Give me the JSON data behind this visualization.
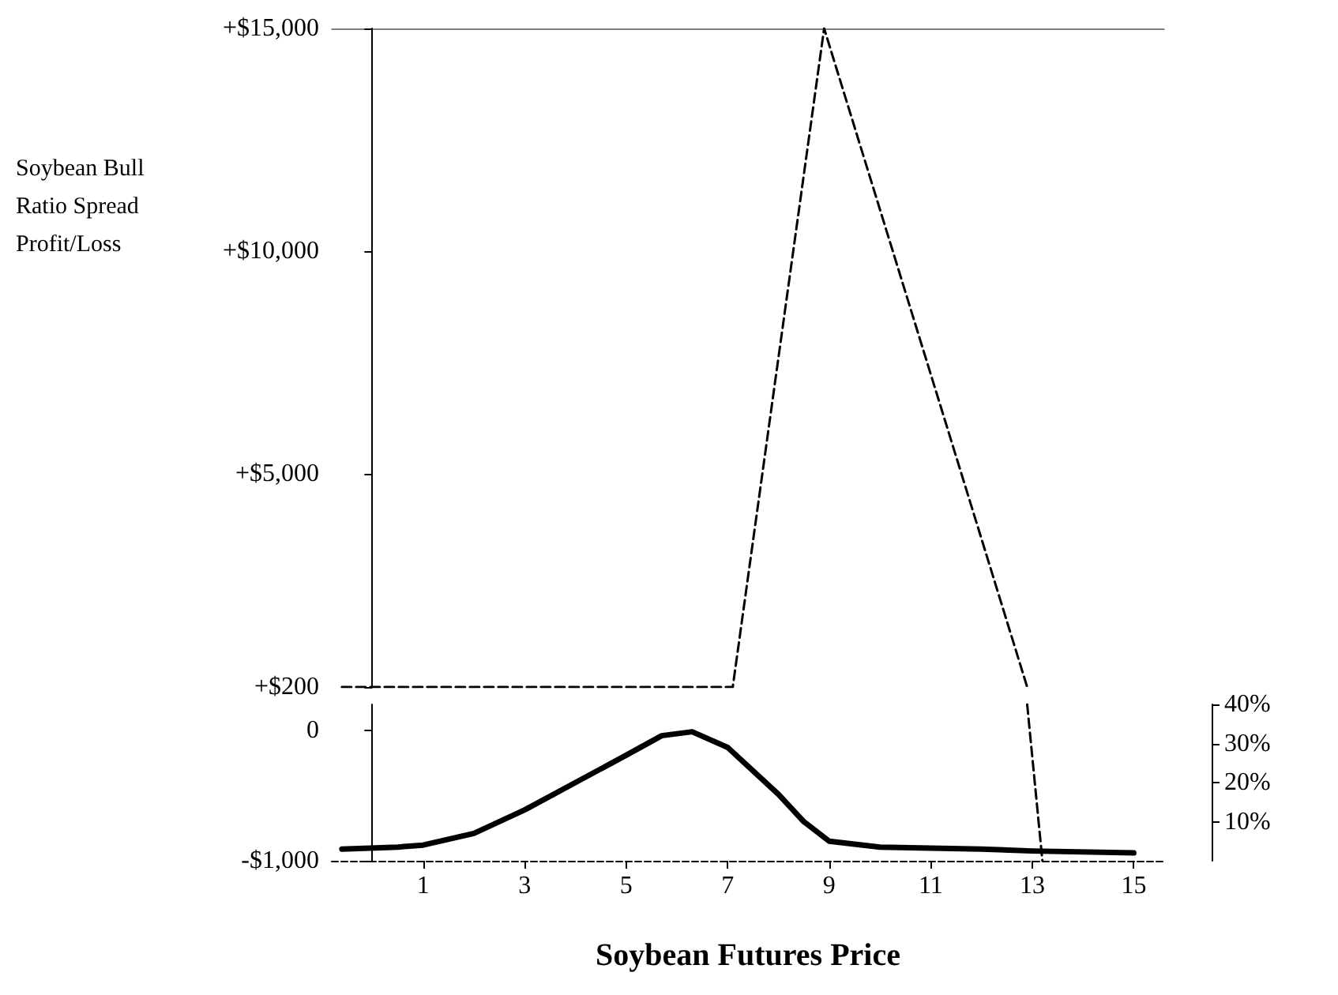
{
  "chart_data": [
    {
      "type": "line",
      "ylabel": "Soybean Bull Ratio Spread Profit/Loss",
      "tick_labels": "y",
      "xlim": [
        -0.8,
        15.6
      ],
      "ylim": [
        200,
        15000
      ],
      "yticks": [
        {
          "value": 15000,
          "label": "+$15,000"
        },
        {
          "value": 10000,
          "label": "+$10,000"
        },
        {
          "value": 5000,
          "label": "+$5,000"
        },
        {
          "value": 200,
          "label": "+$200"
        }
      ],
      "series": [
        {
          "color": "#000000",
          "line_style": "dashed",
          "x": [
            -0.6,
            7.1,
            8.9,
            12.9
          ],
          "values": [
            200,
            200,
            15000,
            200
          ]
        }
      ]
    },
    {
      "type": "line",
      "xlabel": "Soybean Futures Price",
      "grid": false,
      "xlim": [
        -0.8,
        15.6
      ],
      "xticks": [
        1,
        3,
        5,
        7,
        9,
        11,
        13,
        15
      ],
      "ylim": [
        -1000,
        200
      ],
      "yticks": [
        {
          "value": 0,
          "label": "0"
        },
        {
          "value": -1000,
          "label": "-$1,000"
        }
      ],
      "y2lim": [
        0,
        40
      ],
      "y2ticks": [
        {
          "value": 10,
          "label": "10%"
        },
        {
          "value": 20,
          "label": "20%"
        },
        {
          "value": 30,
          "label": "30%"
        },
        {
          "value": 40,
          "label": "40%"
        }
      ],
      "series": [
        {
          "color": "#000000",
          "line_style": "dashed",
          "x": [
            12.9,
            13.2
          ],
          "values": [
            200,
            -1000
          ]
        },
        {
          "color": "#000000",
          "line_style": "solid",
          "axis": "y2",
          "x": [
            -0.6,
            0.5,
            1,
            2,
            3,
            4,
            5,
            5.7,
            6.3,
            7,
            8,
            8.5,
            9,
            10,
            12,
            13,
            15
          ],
          "values": [
            3,
            3.5,
            4,
            7,
            13,
            20,
            27,
            32,
            33,
            29,
            17,
            10,
            5,
            3.5,
            3,
            2.5,
            2
          ]
        }
      ]
    }
  ]
}
